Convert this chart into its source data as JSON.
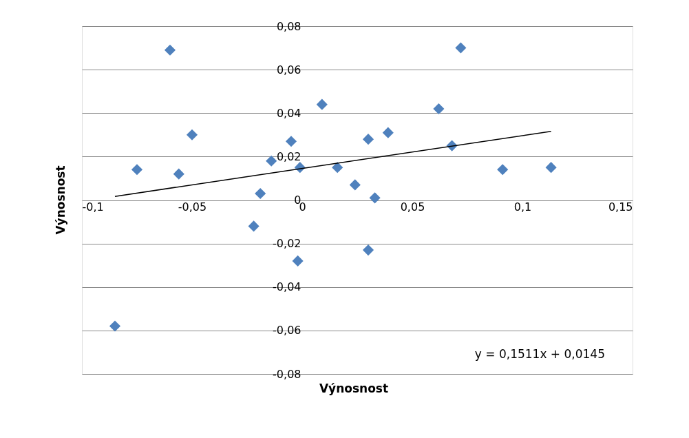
{
  "chart_data": {
    "type": "scatter",
    "xlabel": "Výnosnost",
    "ylabel": "Výnosnost",
    "xlim": [
      -0.1,
      0.15
    ],
    "xticks": [
      {
        "value": -0.1,
        "label": "-0,1"
      },
      {
        "value": -0.05,
        "label": "-0,05"
      },
      {
        "value": 0,
        "label": "0"
      },
      {
        "value": 0.05,
        "label": "0,05"
      },
      {
        "value": 0.1,
        "label": "0,1"
      },
      {
        "value": 0.15,
        "label": "0,15"
      }
    ],
    "ylim": [
      -0.08,
      0.08
    ],
    "yticks": [
      {
        "value": -0.08,
        "label": "-0,08"
      },
      {
        "value": -0.06,
        "label": "-0,06"
      },
      {
        "value": -0.04,
        "label": "-0,04"
      },
      {
        "value": -0.02,
        "label": "-0,02"
      },
      {
        "value": 0,
        "label": "0"
      },
      {
        "value": 0.02,
        "label": "0,02"
      },
      {
        "value": 0.04,
        "label": "0,04"
      },
      {
        "value": 0.06,
        "label": "0,06"
      },
      {
        "value": 0.08,
        "label": "0,08"
      }
    ],
    "grid": "y",
    "annotations": [
      "y = 0,1511x + 0,0145"
    ],
    "series": [
      {
        "marker": "diamond",
        "color": "#4f81bd",
        "x": [
          -0.06,
          0.072,
          0.009,
          0.062,
          -0.05,
          0.039,
          0.03,
          -0.005,
          0.068,
          -0.075,
          -0.056,
          -0.014,
          -0.001,
          0.016,
          0.091,
          0.113,
          0.024,
          -0.019,
          0.033,
          -0.022,
          0.03,
          -0.002,
          -0.085
        ],
        "values": [
          0.069,
          0.07,
          0.044,
          0.042,
          0.03,
          0.031,
          0.028,
          0.027,
          0.025,
          0.014,
          0.012,
          0.018,
          0.015,
          0.015,
          0.014,
          0.015,
          0.007,
          0.003,
          0.001,
          -0.012,
          -0.023,
          -0.028,
          -0.058
        ]
      },
      {
        "type": "line",
        "marker": "none",
        "line_style": "solid",
        "color": "#000000",
        "x": [
          -0.085,
          0.113
        ],
        "values": [
          0.0017,
          0.0316
        ]
      }
    ]
  }
}
